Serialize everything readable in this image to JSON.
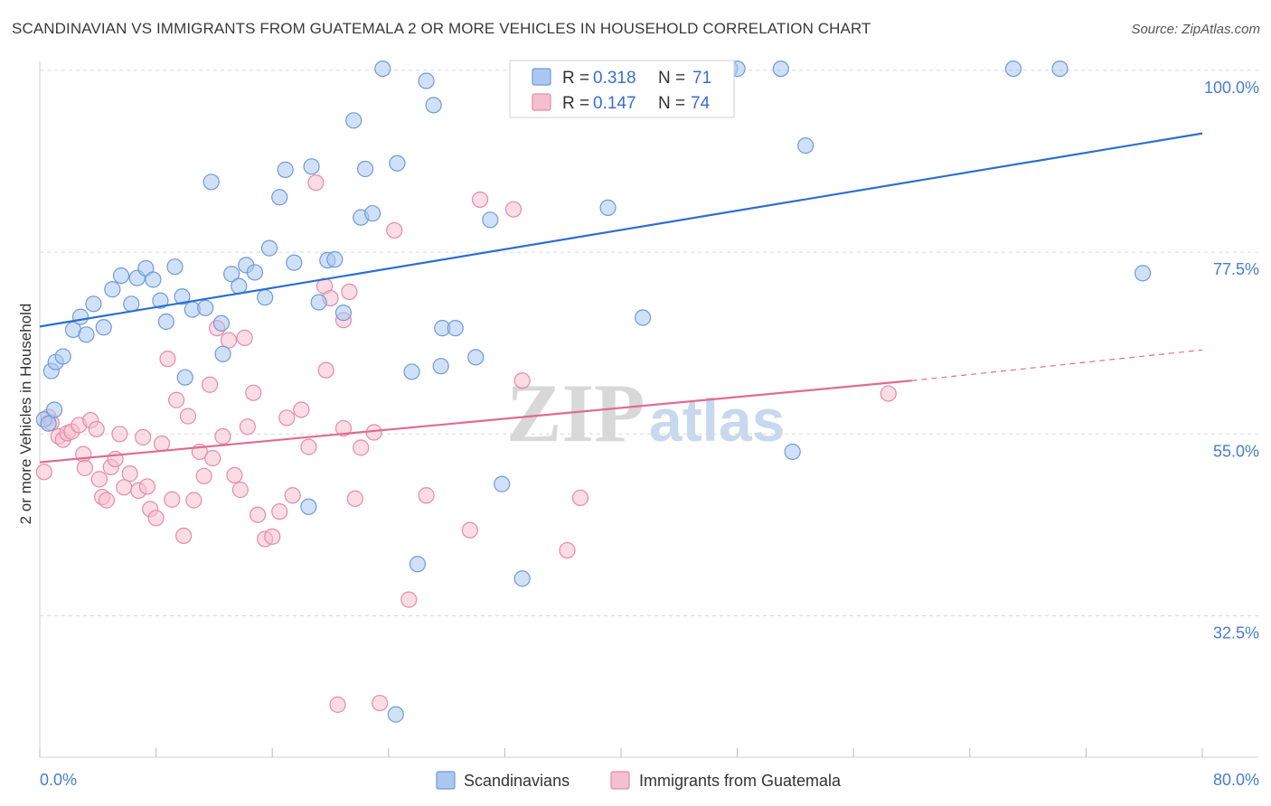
{
  "title": "SCANDINAVIAN VS IMMIGRANTS FROM GUATEMALA 2 OR MORE VEHICLES IN HOUSEHOLD CORRELATION CHART",
  "source": "Source: ZipAtlas.com",
  "watermark": {
    "zip": "ZIP",
    "atlas": "atlas"
  },
  "legend_top": [
    {
      "r_label": "R = ",
      "r_value": "0.318",
      "n_label": "N = ",
      "n_value": "71"
    },
    {
      "r_label": "R = ",
      "r_value": "0.147",
      "n_label": "N = ",
      "n_value": "74"
    }
  ],
  "colors": {
    "blue_fill": "#aac8f0",
    "blue_stroke": "#6f9bd8",
    "blue_line": "#2c6fcf",
    "pink_fill": "#f6bfd0",
    "pink_stroke": "#e68aa8",
    "pink_line": "#e06b94",
    "grid": "#d8d8d8",
    "axis_text": "#4a7bd0"
  },
  "chart_data": {
    "type": "scatter",
    "title": "SCANDINAVIAN VS IMMIGRANTS FROM GUATEMALA 2 OR MORE VEHICLES IN HOUSEHOLD CORRELATION CHART",
    "xlabel": "",
    "ylabel": "2 or more Vehicles in Household",
    "xlim": [
      0,
      80
    ],
    "ylim": [
      15,
      102
    ],
    "x_tick_labels": [
      "0.0%",
      "80.0%"
    ],
    "y_ticks": [
      32.5,
      55.0,
      77.5,
      100.0
    ],
    "y_tick_labels": [
      "32.5%",
      "55.0%",
      "77.5%",
      "100.0%"
    ],
    "grid": true,
    "legend_position": "bottom",
    "series": [
      {
        "name": "Scandinavians",
        "r": 0.318,
        "n": 71,
        "trend": [
          [
            0,
            68.3
          ],
          [
            80,
            92.2
          ]
        ],
        "points": [
          [
            0.3,
            56.8
          ],
          [
            0.8,
            62.8
          ],
          [
            1.1,
            63.9
          ],
          [
            1.6,
            64.6
          ],
          [
            2.3,
            67.9
          ],
          [
            2.8,
            69.5
          ],
          [
            3.2,
            67.3
          ],
          [
            3.7,
            71.1
          ],
          [
            4.4,
            68.2
          ],
          [
            5.0,
            72.9
          ],
          [
            5.6,
            74.6
          ],
          [
            6.3,
            71.1
          ],
          [
            6.7,
            74.3
          ],
          [
            7.3,
            75.5
          ],
          [
            7.8,
            74.1
          ],
          [
            8.3,
            71.5
          ],
          [
            8.7,
            68.9
          ],
          [
            9.3,
            75.7
          ],
          [
            9.8,
            72.0
          ],
          [
            10.5,
            70.4
          ],
          [
            11.4,
            70.6
          ],
          [
            11.8,
            86.2
          ],
          [
            12.5,
            68.7
          ],
          [
            12.6,
            64.9
          ],
          [
            13.2,
            74.8
          ],
          [
            13.7,
            73.3
          ],
          [
            14.2,
            75.9
          ],
          [
            14.8,
            75.0
          ],
          [
            15.5,
            71.9
          ],
          [
            15.8,
            78.0
          ],
          [
            16.5,
            84.3
          ],
          [
            16.9,
            87.7
          ],
          [
            17.5,
            76.2
          ],
          [
            18.7,
            88.1
          ],
          [
            19.2,
            71.3
          ],
          [
            19.8,
            76.5
          ],
          [
            20.3,
            76.6
          ],
          [
            20.9,
            70.0
          ],
          [
            21.6,
            93.8
          ],
          [
            22.1,
            81.8
          ],
          [
            22.4,
            87.8
          ],
          [
            22.9,
            82.3
          ],
          [
            23.6,
            100.2
          ],
          [
            24.5,
            20.3
          ],
          [
            24.6,
            88.5
          ],
          [
            25.6,
            62.7
          ],
          [
            26.0,
            38.9
          ],
          [
            26.6,
            98.7
          ],
          [
            27.1,
            95.7
          ],
          [
            27.6,
            63.4
          ],
          [
            27.7,
            68.1
          ],
          [
            28.6,
            68.1
          ],
          [
            30.0,
            64.5
          ],
          [
            31.0,
            81.5
          ],
          [
            31.8,
            48.8
          ],
          [
            33.2,
            37.1
          ],
          [
            37.6,
            100.2
          ],
          [
            39.1,
            83.0
          ],
          [
            41.5,
            69.4
          ],
          [
            47.5,
            100.2
          ],
          [
            48.0,
            100.2
          ],
          [
            51.0,
            100.2
          ],
          [
            51.8,
            52.8
          ],
          [
            52.7,
            90.7
          ],
          [
            67.0,
            100.2
          ],
          [
            70.2,
            100.2
          ],
          [
            75.9,
            74.9
          ],
          [
            0.6,
            56.3
          ],
          [
            1.0,
            58.0
          ],
          [
            18.5,
            46.0
          ],
          [
            10.0,
            62.0
          ]
        ]
      },
      {
        "name": "Immigrants from Guatemala",
        "r": 0.147,
        "n": 74,
        "trend": [
          [
            0,
            51.5
          ],
          [
            60,
            61.6
          ]
        ],
        "trend_dashed": [
          [
            60,
            61.6
          ],
          [
            80,
            65.4
          ]
        ],
        "points": [
          [
            0.3,
            50.3
          ],
          [
            0.6,
            57.1
          ],
          [
            0.8,
            56.4
          ],
          [
            1.3,
            54.7
          ],
          [
            1.6,
            54.3
          ],
          [
            1.9,
            55.1
          ],
          [
            2.2,
            55.3
          ],
          [
            2.7,
            56.1
          ],
          [
            3.0,
            52.5
          ],
          [
            3.1,
            50.8
          ],
          [
            3.5,
            56.7
          ],
          [
            3.9,
            55.6
          ],
          [
            4.1,
            49.4
          ],
          [
            4.3,
            47.2
          ],
          [
            4.6,
            46.8
          ],
          [
            4.9,
            50.9
          ],
          [
            5.2,
            51.9
          ],
          [
            5.5,
            55.0
          ],
          [
            5.8,
            48.4
          ],
          [
            6.2,
            50.1
          ],
          [
            6.8,
            48.0
          ],
          [
            7.1,
            54.6
          ],
          [
            7.4,
            48.5
          ],
          [
            7.6,
            45.7
          ],
          [
            8.0,
            44.6
          ],
          [
            8.4,
            53.8
          ],
          [
            8.8,
            64.3
          ],
          [
            9.1,
            46.9
          ],
          [
            9.4,
            59.2
          ],
          [
            9.9,
            42.4
          ],
          [
            10.2,
            57.2
          ],
          [
            10.6,
            46.8
          ],
          [
            11.0,
            52.8
          ],
          [
            11.3,
            49.8
          ],
          [
            11.9,
            52.0
          ],
          [
            12.2,
            68.1
          ],
          [
            12.6,
            54.7
          ],
          [
            13.0,
            66.6
          ],
          [
            13.4,
            49.9
          ],
          [
            13.8,
            48.1
          ],
          [
            14.1,
            66.9
          ],
          [
            14.3,
            55.9
          ],
          [
            14.7,
            60.1
          ],
          [
            15.0,
            45.0
          ],
          [
            15.5,
            42.0
          ],
          [
            16.0,
            42.3
          ],
          [
            16.5,
            45.4
          ],
          [
            17.0,
            57.0
          ],
          [
            17.4,
            47.4
          ],
          [
            18.0,
            58.0
          ],
          [
            18.5,
            53.4
          ],
          [
            19.0,
            86.1
          ],
          [
            19.6,
            73.3
          ],
          [
            20.0,
            71.8
          ],
          [
            20.5,
            21.5
          ],
          [
            20.9,
            69.1
          ],
          [
            21.3,
            72.6
          ],
          [
            21.7,
            47.0
          ],
          [
            22.1,
            53.3
          ],
          [
            23.0,
            55.2
          ],
          [
            24.4,
            80.2
          ],
          [
            25.4,
            34.5
          ],
          [
            26.6,
            47.4
          ],
          [
            29.6,
            43.1
          ],
          [
            30.3,
            84.0
          ],
          [
            32.6,
            82.8
          ],
          [
            33.2,
            61.6
          ],
          [
            36.3,
            40.6
          ],
          [
            37.2,
            47.1
          ],
          [
            58.4,
            60.0
          ],
          [
            11.7,
            61.1
          ],
          [
            19.7,
            62.9
          ],
          [
            20.9,
            55.7
          ],
          [
            23.4,
            21.7
          ]
        ]
      }
    ]
  },
  "legend_bottom": [
    {
      "label": "Scandinavians"
    },
    {
      "label": "Immigrants from Guatemala"
    }
  ]
}
